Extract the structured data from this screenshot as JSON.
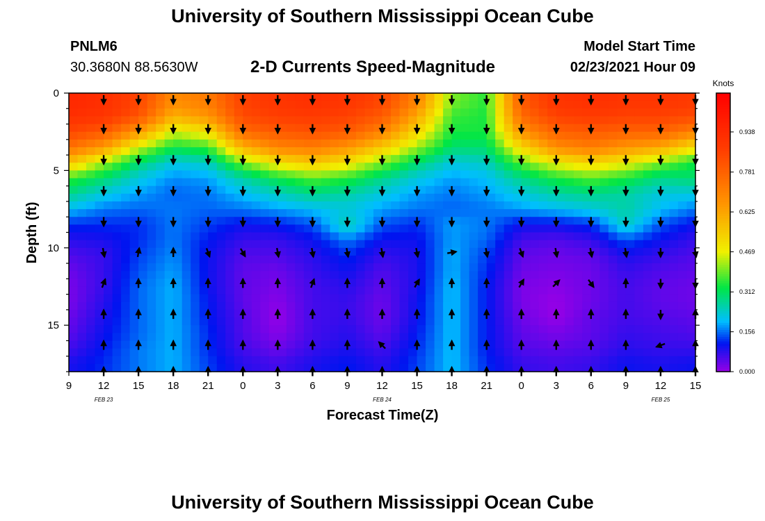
{
  "header": {
    "title": "University of Southern Mississippi Ocean Cube",
    "station": "PNLM6",
    "coords": "30.3680N 88.5630W",
    "subtitle": "2-D Currents Speed-Magnitude",
    "model_start_label": "Model Start Time",
    "model_start_value": "02/23/2021 Hour 09"
  },
  "footer": {
    "title": "University of Southern Mississippi Ocean Cube"
  },
  "chart_data": {
    "type": "heatmap",
    "xlabel": "Forecast Time(Z)",
    "ylabel": "Depth (ft)",
    "x_tick_labels": [
      "9",
      "12",
      "15",
      "18",
      "21",
      "0",
      "3",
      "6",
      "9",
      "12",
      "15",
      "18",
      "21",
      "0",
      "3",
      "6",
      "9",
      "12",
      "15"
    ],
    "date_labels": [
      {
        "label": "FEB 23",
        "hour_index": 4
      },
      {
        "label": "FEB 24",
        "hour_index": 36
      },
      {
        "label": "FEB 25",
        "hour_index": 68
      }
    ],
    "hours_range": [
      0,
      54
    ],
    "y_ticks": [
      0,
      5,
      10,
      15
    ],
    "ylim": [
      0,
      18
    ],
    "colorbar": {
      "title": "Knots",
      "tick_labels": [
        "0.000",
        "0.156",
        "0.312",
        "0.469",
        "0.625",
        "0.781",
        "0.938"
      ],
      "range": [
        0,
        1.09
      ]
    },
    "depth_levels_ft": [
      0.5,
      1.5,
      2.5,
      3.5,
      4.5,
      5.5,
      6.5,
      7.5,
      8.5,
      9.5,
      10.5,
      11.5,
      12.5,
      13.5,
      14.5,
      15.5,
      16.5,
      17.5
    ],
    "time_hours": [
      0,
      3,
      6,
      9,
      12,
      15,
      18,
      21,
      24,
      27,
      30,
      33,
      36,
      39,
      42,
      45,
      48,
      51,
      54
    ],
    "speed_knots": [
      [
        0.95,
        0.92,
        0.85,
        0.68,
        0.72,
        0.86,
        0.9,
        0.92,
        0.9,
        0.85,
        0.7,
        0.4,
        0.35,
        0.8,
        0.9,
        0.92,
        0.9,
        0.9,
        0.88
      ],
      [
        0.92,
        0.9,
        0.82,
        0.6,
        0.66,
        0.84,
        0.87,
        0.88,
        0.86,
        0.8,
        0.62,
        0.36,
        0.34,
        0.76,
        0.86,
        0.88,
        0.86,
        0.86,
        0.84
      ],
      [
        0.85,
        0.8,
        0.65,
        0.45,
        0.5,
        0.76,
        0.8,
        0.82,
        0.8,
        0.7,
        0.52,
        0.34,
        0.34,
        0.66,
        0.78,
        0.8,
        0.78,
        0.78,
        0.7
      ],
      [
        0.75,
        0.65,
        0.45,
        0.33,
        0.36,
        0.6,
        0.7,
        0.72,
        0.66,
        0.55,
        0.42,
        0.3,
        0.3,
        0.52,
        0.68,
        0.72,
        0.66,
        0.62,
        0.5
      ],
      [
        0.56,
        0.42,
        0.3,
        0.22,
        0.24,
        0.4,
        0.5,
        0.55,
        0.5,
        0.4,
        0.3,
        0.22,
        0.24,
        0.38,
        0.48,
        0.52,
        0.48,
        0.4,
        0.33
      ],
      [
        0.36,
        0.3,
        0.22,
        0.17,
        0.18,
        0.26,
        0.33,
        0.38,
        0.35,
        0.28,
        0.22,
        0.18,
        0.2,
        0.28,
        0.34,
        0.38,
        0.34,
        0.28,
        0.3
      ],
      [
        0.28,
        0.22,
        0.18,
        0.15,
        0.16,
        0.2,
        0.24,
        0.28,
        0.26,
        0.22,
        0.18,
        0.16,
        0.18,
        0.22,
        0.26,
        0.28,
        0.26,
        0.22,
        0.22
      ],
      [
        0.2,
        0.16,
        0.15,
        0.16,
        0.15,
        0.16,
        0.18,
        0.2,
        0.22,
        0.18,
        0.16,
        0.15,
        0.16,
        0.18,
        0.2,
        0.22,
        0.26,
        0.2,
        0.16
      ],
      [
        0.12,
        0.12,
        0.12,
        0.16,
        0.13,
        0.1,
        0.11,
        0.14,
        0.25,
        0.14,
        0.12,
        0.18,
        0.16,
        0.1,
        0.1,
        0.12,
        0.24,
        0.14,
        0.1
      ],
      [
        0.08,
        0.09,
        0.12,
        0.16,
        0.11,
        0.07,
        0.07,
        0.1,
        0.16,
        0.1,
        0.1,
        0.18,
        0.15,
        0.06,
        0.05,
        0.07,
        0.14,
        0.1,
        0.07
      ],
      [
        0.05,
        0.07,
        0.13,
        0.17,
        0.1,
        0.05,
        0.05,
        0.08,
        0.12,
        0.07,
        0.09,
        0.19,
        0.13,
        0.04,
        0.03,
        0.04,
        0.09,
        0.07,
        0.05
      ],
      [
        0.03,
        0.07,
        0.14,
        0.18,
        0.1,
        0.04,
        0.03,
        0.07,
        0.1,
        0.05,
        0.09,
        0.19,
        0.12,
        0.03,
        0.02,
        0.03,
        0.07,
        0.05,
        0.04
      ],
      [
        0.02,
        0.07,
        0.15,
        0.19,
        0.1,
        0.04,
        0.02,
        0.06,
        0.08,
        0.04,
        0.09,
        0.2,
        0.11,
        0.02,
        0.01,
        0.03,
        0.06,
        0.04,
        0.03
      ],
      [
        0.02,
        0.08,
        0.15,
        0.19,
        0.11,
        0.04,
        0.01,
        0.06,
        0.07,
        0.03,
        0.1,
        0.2,
        0.11,
        0.02,
        0.0,
        0.03,
        0.06,
        0.04,
        0.03
      ],
      [
        0.03,
        0.09,
        0.15,
        0.19,
        0.11,
        0.05,
        0.0,
        0.06,
        0.07,
        0.03,
        0.1,
        0.2,
        0.11,
        0.03,
        0.0,
        0.04,
        0.06,
        0.05,
        0.04
      ],
      [
        0.04,
        0.1,
        0.15,
        0.19,
        0.12,
        0.05,
        0.01,
        0.06,
        0.08,
        0.04,
        0.11,
        0.2,
        0.11,
        0.04,
        0.02,
        0.04,
        0.07,
        0.06,
        0.05
      ],
      [
        0.06,
        0.11,
        0.16,
        0.19,
        0.12,
        0.06,
        0.03,
        0.07,
        0.09,
        0.06,
        0.12,
        0.2,
        0.11,
        0.05,
        0.04,
        0.05,
        0.08,
        0.07,
        0.07
      ],
      [
        0.09,
        0.12,
        0.16,
        0.19,
        0.13,
        0.08,
        0.06,
        0.09,
        0.11,
        0.08,
        0.13,
        0.2,
        0.12,
        0.07,
        0.06,
        0.07,
        0.1,
        0.09,
        0.1
      ]
    ],
    "arrow_rows_depth_ft": [
      0.2,
      2.3,
      4.3,
      6.3,
      8.3,
      10.3,
      12.3,
      14.3,
      16.3,
      18.0
    ],
    "arrow_columns_hours": [
      3,
      6,
      9,
      12,
      15,
      18,
      21,
      24,
      27,
      30,
      33,
      36,
      39,
      42,
      45,
      48,
      51,
      54
    ],
    "arrow_direction_deg": [
      [
        180,
        180,
        180,
        180,
        180,
        180,
        180,
        180,
        180,
        180,
        180,
        180,
        180,
        180,
        180,
        180,
        180,
        180
      ],
      [
        180,
        180,
        180,
        180,
        180,
        180,
        180,
        180,
        180,
        180,
        180,
        180,
        180,
        180,
        180,
        180,
        180,
        180
      ],
      [
        180,
        180,
        180,
        180,
        180,
        180,
        180,
        180,
        180,
        180,
        180,
        180,
        180,
        180,
        180,
        180,
        180,
        180
      ],
      [
        180,
        180,
        180,
        180,
        180,
        180,
        180,
        180,
        180,
        180,
        180,
        180,
        180,
        180,
        180,
        180,
        180,
        180
      ],
      [
        180,
        180,
        180,
        180,
        180,
        180,
        180,
        180,
        180,
        180,
        180,
        180,
        180,
        180,
        180,
        180,
        180,
        180
      ],
      [
        170,
        10,
        0,
        160,
        150,
        170,
        170,
        170,
        170,
        170,
        80,
        170,
        160,
        170,
        170,
        170,
        180,
        170
      ],
      [
        20,
        0,
        0,
        0,
        0,
        0,
        20,
        0,
        0,
        30,
        0,
        0,
        30,
        45,
        145,
        0,
        180,
        180
      ],
      [
        0,
        0,
        0,
        0,
        0,
        0,
        0,
        0,
        0,
        0,
        0,
        0,
        0,
        0,
        0,
        0,
        180,
        0
      ],
      [
        0,
        0,
        0,
        0,
        0,
        0,
        0,
        0,
        315,
        0,
        0,
        0,
        0,
        0,
        0,
        0,
        250,
        0
      ],
      [
        0,
        0,
        0,
        0,
        0,
        0,
        0,
        0,
        0,
        0,
        0,
        0,
        0,
        0,
        0,
        0,
        0,
        0
      ]
    ]
  }
}
